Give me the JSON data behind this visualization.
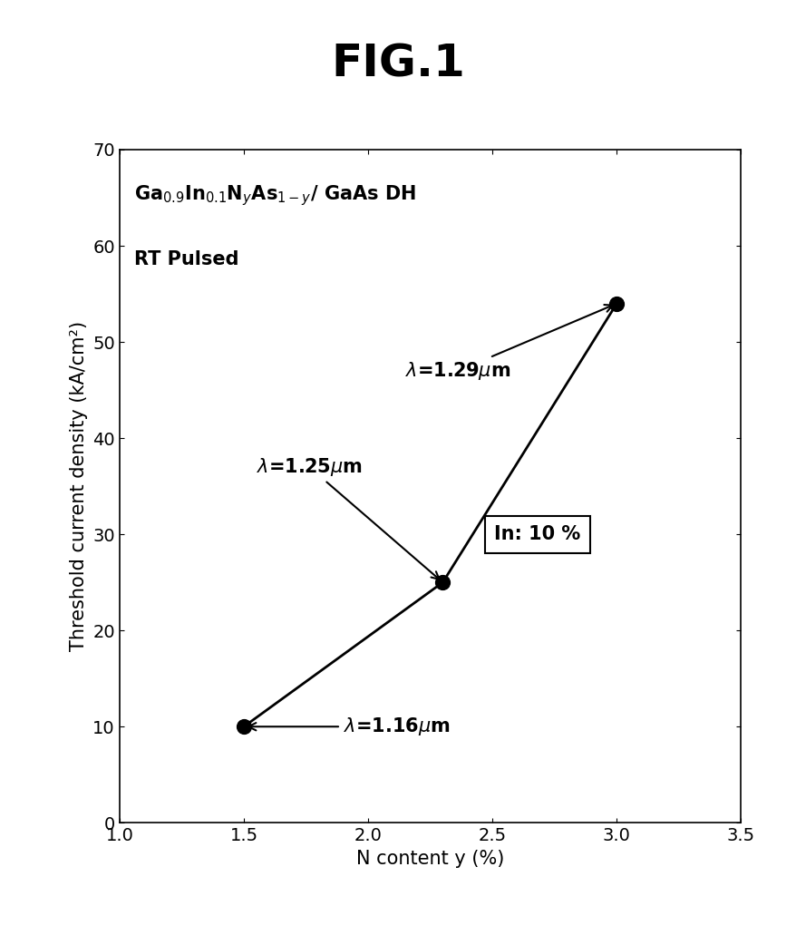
{
  "title": "FIG.1",
  "x_data": [
    1.5,
    2.3,
    3.0
  ],
  "y_data": [
    10,
    25,
    54
  ],
  "xlabel": "N content y (%)",
  "ylabel": "Threshold current density (kA/cm²)",
  "xlim": [
    1.0,
    3.5
  ],
  "ylim": [
    0,
    70
  ],
  "xticks": [
    1.0,
    1.5,
    2.0,
    2.5,
    3.0,
    3.5
  ],
  "yticks": [
    0,
    10,
    20,
    30,
    40,
    50,
    60,
    70
  ],
  "formula_main": "Ga",
  "rt_pulsed": "RT Pulsed",
  "lambda1_text": "$\\lambda$=1.16$\\mu$m",
  "lambda2_text": "$\\lambda$=1.25$\\mu$m",
  "lambda3_text": "$\\lambda$=1.29$\\mu$m",
  "legend_text": "In: 10 %",
  "marker_color": "#000000",
  "line_color": "#000000",
  "background_color": "#ffffff",
  "title_fontsize": 36,
  "axis_fontsize": 15,
  "tick_fontsize": 14,
  "annotation_fontsize": 15,
  "formula_fontsize": 15
}
